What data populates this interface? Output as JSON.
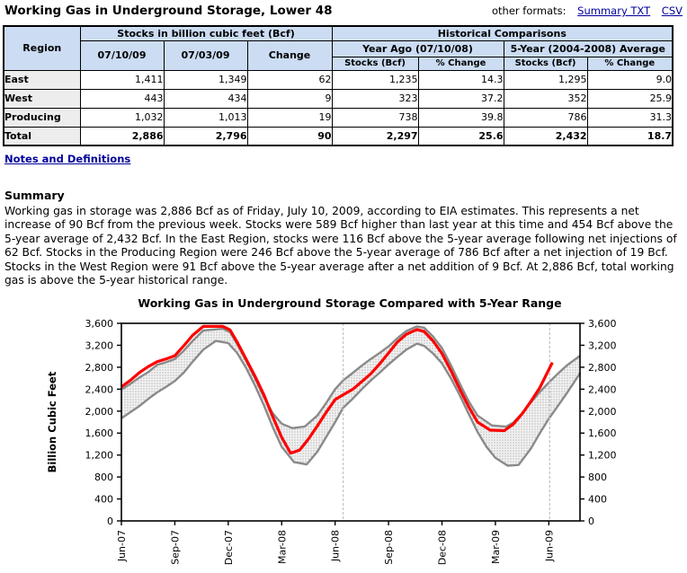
{
  "page": {
    "title": "Working Gas in Underground Storage, Lower 48"
  },
  "formats": {
    "label": "other formats:",
    "links": [
      {
        "label": "Summary TXT"
      },
      {
        "label": "CSV"
      }
    ],
    "link_color": "#000099"
  },
  "table": {
    "header": {
      "region": "Region",
      "stocks_group": "Stocks in billion cubic feet (Bcf)",
      "historical_group": "Historical Comparisons",
      "col_current": "07/10/09",
      "col_prev": "07/03/09",
      "col_change": "Change",
      "year_ago_group": "Year Ago (07/10/08)",
      "five_year_group": "5-Year (2004-2008) Average",
      "stocks_bcf": "Stocks (Bcf)",
      "pct_change": "% Change"
    },
    "header_bg": "#cbdcf3",
    "row_label_bg": "#ededed",
    "rows": [
      {
        "region": "East",
        "cells": [
          "1,411",
          "1,349",
          "62",
          "1,235",
          "14.3",
          "1,295",
          "9.0"
        ]
      },
      {
        "region": "West",
        "cells": [
          "443",
          "434",
          "9",
          "323",
          "37.2",
          "352",
          "25.9"
        ]
      },
      {
        "region": "Producing",
        "cells": [
          "1,032",
          "1,013",
          "19",
          "738",
          "39.8",
          "786",
          "31.3"
        ]
      },
      {
        "region": "Total",
        "cells": [
          "2,886",
          "2,796",
          "90",
          "2,297",
          "25.6",
          "2,432",
          "18.7"
        ]
      }
    ]
  },
  "notes": {
    "link": "Notes and Definitions"
  },
  "summary": {
    "heading": "Summary",
    "text": "Working gas in storage was 2,886 Bcf as of Friday, July 10, 2009, according to EIA estimates. This represents a net increase of 90 Bcf from the previous week. Stocks were 589 Bcf higher than last year at this time and 454 Bcf above the 5-year average of 2,432 Bcf. In the East Region, stocks were 116 Bcf above the 5-year average following net injections of 62 Bcf. Stocks in the Producing Region were 246 Bcf above the 5-year average of 786 Bcf after a net injection of 19 Bcf. Stocks in the West Region were 91 Bcf above the 5-year average after a net addition of 9 Bcf. At 2,886 Bcf, total working gas is above the 5-year historical range."
  },
  "chart_data": {
    "type": "line",
    "title": "Working Gas in Underground Storage Compared with 5-Year Range",
    "ylabel": "Billion Cubic Feet",
    "ylim": [
      0,
      3600
    ],
    "y_tick_values": [
      0,
      400,
      800,
      1200,
      1600,
      2000,
      2400,
      2800,
      3200,
      3600
    ],
    "y_tick_labels": [
      "0",
      "400",
      "800",
      "1,200",
      "1,600",
      "2,000",
      "2,400",
      "2,800",
      "3,200",
      "3,600"
    ],
    "x_range": [
      0,
      25.75
    ],
    "x_tick_positions": [
      0,
      3,
      6,
      9,
      12,
      15,
      18,
      21,
      24
    ],
    "x_tick_labels": [
      "Jun-07",
      "Sep-07",
      "Dec-07",
      "Mar-08",
      "Jun-08",
      "Sep-08",
      "Dec-08",
      "Mar-09",
      "Jun-09"
    ],
    "dashed_vlines": [
      12.45,
      24.05
    ],
    "legend": "none",
    "grid": false,
    "colors": {
      "line": "#ff0000",
      "band_edge": "#8a8a8a",
      "dashed": "#c8c8c8",
      "axis": "#000000"
    },
    "series": [
      {
        "name": "Lower 48 working gas in storage (weekly, Bcf)",
        "role": "line",
        "color": "#ff0000",
        "points": [
          [
            0,
            2443
          ],
          [
            0.5,
            2560
          ],
          [
            1,
            2700
          ],
          [
            1.5,
            2810
          ],
          [
            2,
            2900
          ],
          [
            2.5,
            2950
          ],
          [
            3,
            3010
          ],
          [
            3.5,
            3190
          ],
          [
            4,
            3380
          ],
          [
            4.6,
            3545
          ],
          [
            5.7,
            3545
          ],
          [
            6.1,
            3480
          ],
          [
            6.5,
            3260
          ],
          [
            7,
            2950
          ],
          [
            7.5,
            2640
          ],
          [
            8,
            2300
          ],
          [
            8.5,
            1900
          ],
          [
            9,
            1520
          ],
          [
            9.5,
            1234
          ],
          [
            10,
            1290
          ],
          [
            10.5,
            1490
          ],
          [
            11,
            1730
          ],
          [
            11.5,
            1980
          ],
          [
            12,
            2210
          ],
          [
            12.45,
            2297
          ],
          [
            13,
            2400
          ],
          [
            13.5,
            2540
          ],
          [
            14,
            2680
          ],
          [
            14.5,
            2860
          ],
          [
            15,
            3060
          ],
          [
            15.5,
            3260
          ],
          [
            16,
            3400
          ],
          [
            16.6,
            3488
          ],
          [
            17,
            3450
          ],
          [
            17.5,
            3280
          ],
          [
            18,
            3050
          ],
          [
            18.5,
            2740
          ],
          [
            19,
            2400
          ],
          [
            19.5,
            2080
          ],
          [
            20,
            1800
          ],
          [
            20.7,
            1655
          ],
          [
            21.5,
            1645
          ],
          [
            22,
            1760
          ],
          [
            22.5,
            1950
          ],
          [
            23,
            2180
          ],
          [
            23.5,
            2430
          ],
          [
            24.2,
            2886
          ]
        ]
      },
      {
        "name": "5-year range maximum (Bcf)",
        "role": "band_top",
        "color": "#8a8a8a",
        "points": [
          [
            0,
            2390
          ],
          [
            0.5,
            2495
          ],
          [
            1,
            2610
          ],
          [
            1.5,
            2710
          ],
          [
            2,
            2840
          ],
          [
            2.5,
            2890
          ],
          [
            3,
            2950
          ],
          [
            3.5,
            3100
          ],
          [
            4,
            3280
          ],
          [
            4.6,
            3470
          ],
          [
            5.7,
            3500
          ],
          [
            6.1,
            3440
          ],
          [
            6.5,
            3220
          ],
          [
            7,
            2920
          ],
          [
            7.5,
            2600
          ],
          [
            8,
            2260
          ],
          [
            8.5,
            1960
          ],
          [
            9,
            1770
          ],
          [
            9.6,
            1690
          ],
          [
            10.3,
            1720
          ],
          [
            11,
            1920
          ],
          [
            11.5,
            2150
          ],
          [
            12,
            2400
          ],
          [
            12.45,
            2560
          ],
          [
            13,
            2700
          ],
          [
            13.5,
            2830
          ],
          [
            14,
            2950
          ],
          [
            14.5,
            3060
          ],
          [
            15,
            3180
          ],
          [
            15.5,
            3330
          ],
          [
            16,
            3460
          ],
          [
            16.6,
            3545
          ],
          [
            17,
            3520
          ],
          [
            17.5,
            3360
          ],
          [
            18,
            3150
          ],
          [
            18.5,
            2840
          ],
          [
            19,
            2500
          ],
          [
            19.5,
            2180
          ],
          [
            20,
            1920
          ],
          [
            20.8,
            1740
          ],
          [
            21.6,
            1717
          ],
          [
            22,
            1790
          ],
          [
            22.5,
            1960
          ],
          [
            23,
            2160
          ],
          [
            23.5,
            2350
          ],
          [
            24,
            2520
          ],
          [
            24.5,
            2680
          ],
          [
            25,
            2830
          ],
          [
            25.75,
            3010
          ]
        ]
      },
      {
        "name": "5-year range minimum (Bcf)",
        "role": "band_bottom",
        "color": "#8a8a8a",
        "points": [
          [
            0,
            1870
          ],
          [
            0.5,
            1980
          ],
          [
            1,
            2090
          ],
          [
            1.5,
            2220
          ],
          [
            2,
            2340
          ],
          [
            2.5,
            2440
          ],
          [
            3,
            2550
          ],
          [
            3.5,
            2700
          ],
          [
            4,
            2900
          ],
          [
            4.6,
            3120
          ],
          [
            5.3,
            3280
          ],
          [
            6,
            3240
          ],
          [
            6.5,
            3060
          ],
          [
            7,
            2790
          ],
          [
            7.5,
            2470
          ],
          [
            8,
            2110
          ],
          [
            8.5,
            1710
          ],
          [
            9,
            1350
          ],
          [
            9.7,
            1070
          ],
          [
            10.4,
            1030
          ],
          [
            11,
            1260
          ],
          [
            11.5,
            1530
          ],
          [
            12,
            1800
          ],
          [
            12.45,
            2060
          ],
          [
            13,
            2230
          ],
          [
            13.5,
            2400
          ],
          [
            14,
            2560
          ],
          [
            14.5,
            2700
          ],
          [
            15,
            2850
          ],
          [
            15.5,
            2990
          ],
          [
            16,
            3120
          ],
          [
            16.6,
            3230
          ],
          [
            17,
            3190
          ],
          [
            17.5,
            3050
          ],
          [
            18,
            2870
          ],
          [
            18.5,
            2600
          ],
          [
            19,
            2290
          ],
          [
            19.5,
            1950
          ],
          [
            20,
            1620
          ],
          [
            20.5,
            1350
          ],
          [
            21,
            1150
          ],
          [
            21.7,
            1005
          ],
          [
            22.3,
            1020
          ],
          [
            23,
            1320
          ],
          [
            23.5,
            1600
          ],
          [
            24,
            1860
          ],
          [
            24.5,
            2090
          ],
          [
            25,
            2320
          ],
          [
            25.75,
            2690
          ]
        ]
      }
    ]
  }
}
